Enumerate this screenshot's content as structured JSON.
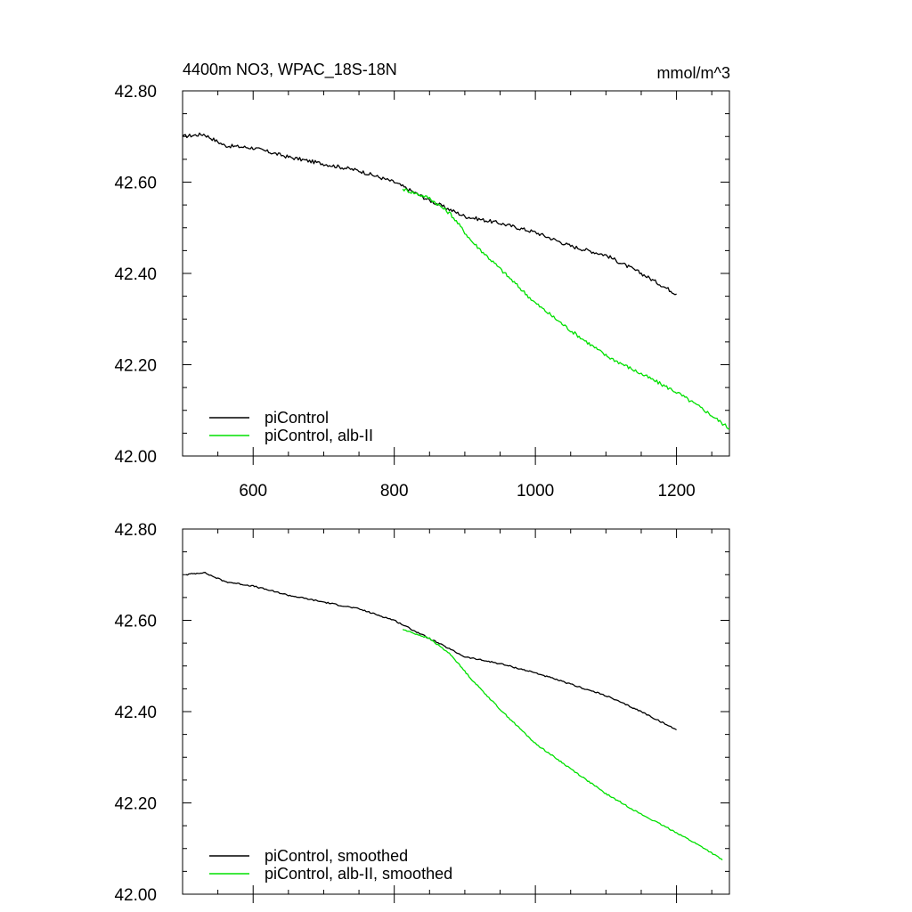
{
  "chart_data": [
    {
      "type": "line",
      "title": "4400m NO3, WPAC_18S-18N",
      "units": "mmol/m^3",
      "xlabel": "",
      "ylabel": "",
      "xlim": [
        500,
        1275
      ],
      "ylim": [
        42.0,
        42.8
      ],
      "x_ticks": [
        600,
        800,
        1000,
        1200
      ],
      "x_tick_labels": [
        "600",
        "800",
        "1000",
        "1200"
      ],
      "y_ticks": [
        42.0,
        42.2,
        42.4,
        42.6,
        42.8
      ],
      "y_tick_labels": [
        "42.00",
        "42.20",
        "42.40",
        "42.60",
        "42.80"
      ],
      "grid": false,
      "legend_position": "bottom-left",
      "series": [
        {
          "name": "piControl",
          "color": "#000000",
          "noise": 0.004,
          "points": [
            [
              500,
              42.7
            ],
            [
              530,
              42.705
            ],
            [
              560,
              42.68
            ],
            [
              600,
              42.675
            ],
            [
              650,
              42.655
            ],
            [
              700,
              42.64
            ],
            [
              750,
              42.625
            ],
            [
              800,
              42.6
            ],
            [
              850,
              42.56
            ],
            [
              900,
              42.525
            ],
            [
              950,
              42.51
            ],
            [
              1000,
              42.49
            ],
            [
              1050,
              42.46
            ],
            [
              1100,
              42.44
            ],
            [
              1150,
              42.4
            ],
            [
              1200,
              42.355
            ]
          ]
        },
        {
          "name": "piControl, alb-II",
          "color": "#00e000",
          "noise": 0.004,
          "points": [
            [
              812,
              42.585
            ],
            [
              850,
              42.565
            ],
            [
              880,
              42.53
            ],
            [
              910,
              42.47
            ],
            [
              950,
              42.41
            ],
            [
              1000,
              42.335
            ],
            [
              1050,
              42.275
            ],
            [
              1100,
              42.22
            ],
            [
              1150,
              42.18
            ],
            [
              1200,
              42.14
            ],
            [
              1240,
              42.1
            ],
            [
              1275,
              42.06
            ]
          ]
        }
      ]
    },
    {
      "type": "line",
      "title": "",
      "xlabel": "",
      "ylabel": "",
      "xlim": [
        500,
        1275
      ],
      "ylim": [
        42.0,
        42.8
      ],
      "x_ticks": [
        600,
        800,
        1000,
        1200
      ],
      "y_ticks": [
        42.0,
        42.2,
        42.4,
        42.6,
        42.8
      ],
      "y_tick_labels": [
        "42.00",
        "42.20",
        "42.40",
        "42.60",
        "42.80"
      ],
      "grid": false,
      "legend_position": "bottom-left",
      "series": [
        {
          "name": "piControl, smoothed",
          "color": "#000000",
          "noise": 0.0015,
          "points": [
            [
              505,
              42.7
            ],
            [
              530,
              42.705
            ],
            [
              560,
              42.685
            ],
            [
              600,
              42.675
            ],
            [
              650,
              42.655
            ],
            [
              700,
              42.64
            ],
            [
              750,
              42.625
            ],
            [
              800,
              42.6
            ],
            [
              850,
              42.56
            ],
            [
              900,
              42.52
            ],
            [
              950,
              42.505
            ],
            [
              1000,
              42.485
            ],
            [
              1050,
              42.46
            ],
            [
              1100,
              42.435
            ],
            [
              1150,
              42.4
            ],
            [
              1200,
              42.36
            ]
          ]
        },
        {
          "name": "piControl, alb-II, smoothed",
          "color": "#00e000",
          "noise": 0.0015,
          "points": [
            [
              812,
              42.58
            ],
            [
              850,
              42.56
            ],
            [
              880,
              42.525
            ],
            [
              910,
              42.47
            ],
            [
              950,
              42.405
            ],
            [
              1000,
              42.33
            ],
            [
              1050,
              42.275
            ],
            [
              1100,
              42.22
            ],
            [
              1150,
              42.175
            ],
            [
              1200,
              42.135
            ],
            [
              1240,
              42.1
            ],
            [
              1265,
              42.075
            ]
          ]
        }
      ]
    }
  ]
}
